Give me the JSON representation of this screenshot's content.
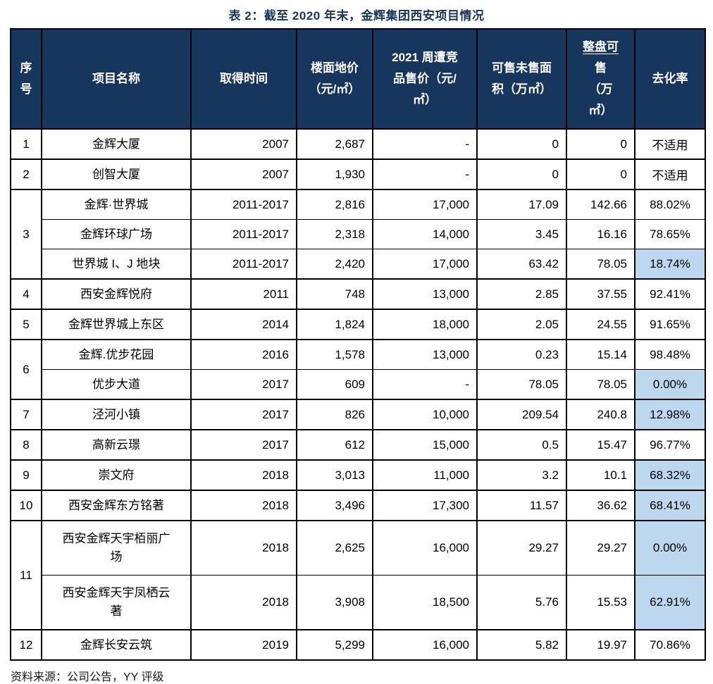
{
  "page": {
    "title": "表 2：截至 2020 年末，金辉集团西安项目情况",
    "source_note": "资料来源：公司公告，YY 评级"
  },
  "colors": {
    "header_bg": "#17365D",
    "header_text": "#FFFFFF",
    "title_text": "#17365D",
    "highlight_bg": "#BDD7EE",
    "border": "#000000",
    "body_text": "#000000"
  },
  "table": {
    "header": [
      {
        "key": "no",
        "lines": [
          "序",
          "号"
        ]
      },
      {
        "key": "name",
        "lines": [
          "项目名称"
        ]
      },
      {
        "key": "time",
        "lines": [
          "取得时间"
        ]
      },
      {
        "key": "floor_price",
        "lines": [
          "楼面地价",
          "（元/㎡）"
        ]
      },
      {
        "key": "comp_price",
        "lines": [
          "2021 周遭竞",
          "品售价（元/",
          "㎡）"
        ]
      },
      {
        "key": "unsold_area",
        "lines": [
          "可售未售面",
          "积（万㎡）"
        ]
      },
      {
        "key": "total_saleable",
        "lines": [
          "整盘可",
          "售",
          "（万",
          "㎡）"
        ],
        "underline_line": 0
      },
      {
        "key": "absorption",
        "lines": [
          "去化率"
        ]
      }
    ],
    "rows": [
      {
        "no": "1",
        "no_span": 1,
        "group_start": true,
        "tall": false,
        "name": "金辉大厦",
        "time": "2007",
        "floor_price": "2,687",
        "comp_price": "-",
        "unsold_area": "0",
        "total_saleable": "0",
        "absorption": "不适用",
        "highlight": false
      },
      {
        "no": "2",
        "no_span": 1,
        "group_start": true,
        "tall": false,
        "name": "创智大厦",
        "time": "2007",
        "floor_price": "1,930",
        "comp_price": "-",
        "unsold_area": "0",
        "total_saleable": "0",
        "absorption": "不适用",
        "highlight": false
      },
      {
        "no": "3",
        "no_span": 3,
        "group_start": true,
        "tall": false,
        "name": "金辉·世界城",
        "time": "2011-2017",
        "floor_price": "2,816",
        "comp_price": "17,000",
        "unsold_area": "17.09",
        "total_saleable": "142.66",
        "absorption": "88.02%",
        "highlight": false
      },
      {
        "no": "",
        "no_span": 0,
        "group_start": false,
        "tall": false,
        "name": "金辉环球广场",
        "time": "2011-2017",
        "floor_price": "2,318",
        "comp_price": "14,000",
        "unsold_area": "3.45",
        "total_saleable": "16.16",
        "absorption": "78.65%",
        "highlight": false
      },
      {
        "no": "",
        "no_span": 0,
        "group_start": false,
        "tall": false,
        "name": "世界城 I、J 地块",
        "time": "2011-2017",
        "floor_price": "2,420",
        "comp_price": "17,000",
        "unsold_area": "63.42",
        "total_saleable": "78.05",
        "absorption": "18.74%",
        "highlight": true
      },
      {
        "no": "4",
        "no_span": 1,
        "group_start": true,
        "tall": false,
        "name": "西安金辉悦府",
        "time": "2011",
        "floor_price": "748",
        "comp_price": "13,000",
        "unsold_area": "2.85",
        "total_saleable": "37.55",
        "absorption": "92.41%",
        "highlight": false
      },
      {
        "no": "5",
        "no_span": 1,
        "group_start": true,
        "tall": false,
        "name": "金辉世界城上东区",
        "time": "2014",
        "floor_price": "1,824",
        "comp_price": "18,000",
        "unsold_area": "2.05",
        "total_saleable": "24.55",
        "absorption": "91.65%",
        "highlight": false
      },
      {
        "no": "6",
        "no_span": 2,
        "group_start": true,
        "tall": false,
        "name": "金辉.优步花园",
        "time": "2016",
        "floor_price": "1,578",
        "comp_price": "13,000",
        "unsold_area": "0.23",
        "total_saleable": "15.14",
        "absorption": "98.48%",
        "highlight": false
      },
      {
        "no": "",
        "no_span": 0,
        "group_start": false,
        "tall": false,
        "name": "优步大道",
        "time": "2017",
        "floor_price": "609",
        "comp_price": "-",
        "unsold_area": "78.05",
        "total_saleable": "78.05",
        "absorption": "0.00%",
        "highlight": true
      },
      {
        "no": "7",
        "no_span": 1,
        "group_start": true,
        "tall": false,
        "name": "泾河小镇",
        "time": "2017",
        "floor_price": "826",
        "comp_price": "10,000",
        "unsold_area": "209.54",
        "total_saleable": "240.8",
        "absorption": "12.98%",
        "highlight": true
      },
      {
        "no": "8",
        "no_span": 1,
        "group_start": true,
        "tall": false,
        "name": "高新云璟",
        "time": "2017",
        "floor_price": "612",
        "comp_price": "15,000",
        "unsold_area": "0.5",
        "total_saleable": "15.47",
        "absorption": "96.77%",
        "highlight": false
      },
      {
        "no": "9",
        "no_span": 1,
        "group_start": true,
        "tall": false,
        "name": "崇文府",
        "time": "2018",
        "floor_price": "3,013",
        "comp_price": "11,000",
        "unsold_area": "3.2",
        "total_saleable": "10.1",
        "absorption": "68.32%",
        "highlight": true
      },
      {
        "no": "10",
        "no_span": 1,
        "group_start": true,
        "tall": false,
        "name": "西安金辉东方铭著",
        "time": "2018",
        "floor_price": "3,496",
        "comp_price": "17,300",
        "unsold_area": "11.57",
        "total_saleable": "36.62",
        "absorption": "68.41%",
        "highlight": true
      },
      {
        "no": "11",
        "no_span": 2,
        "group_start": true,
        "tall": true,
        "name": "西安金辉天宇栢丽广场",
        "time": "2018",
        "floor_price": "2,625",
        "comp_price": "16,000",
        "unsold_area": "29.27",
        "total_saleable": "29.27",
        "absorption": "0.00%",
        "highlight": true
      },
      {
        "no": "",
        "no_span": 0,
        "group_start": false,
        "tall": true,
        "name": "西安金辉天宇凤栖云著",
        "time": "2018",
        "floor_price": "3,908",
        "comp_price": "18,500",
        "unsold_area": "5.76",
        "total_saleable": "15.53",
        "absorption": "62.91%",
        "highlight": true
      },
      {
        "no": "12",
        "no_span": 1,
        "group_start": true,
        "tall": false,
        "name": "金辉长安云筑",
        "time": "2019",
        "floor_price": "5,299",
        "comp_price": "16,000",
        "unsold_area": "5.82",
        "total_saleable": "19.97",
        "absorption": "70.86%",
        "highlight": false
      }
    ]
  }
}
